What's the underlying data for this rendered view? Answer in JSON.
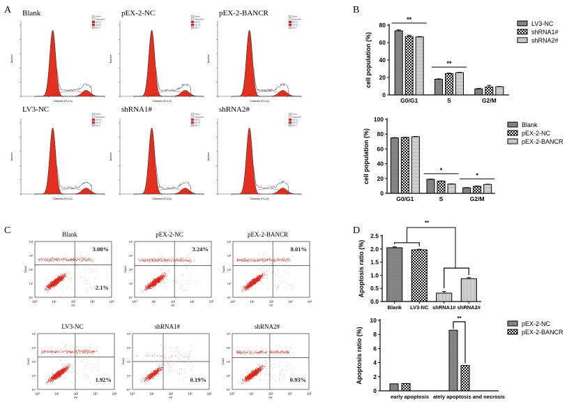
{
  "panel_labels": {
    "a": "A",
    "b": "B",
    "c": "C",
    "d": "D"
  },
  "panel_a": {
    "xlabel": "Channels (FL2-A)",
    "ylabel": "Number",
    "legend": [
      "Debris",
      "Aggregates",
      "Dip G1",
      "Dip G2",
      "Dip S"
    ],
    "plots": [
      {
        "title": "Blank"
      },
      {
        "title": "pEX-2-NC"
      },
      {
        "title": "pEX-2-BANCR"
      },
      {
        "title": "LV3-NC"
      },
      {
        "title": "shRNA1#"
      },
      {
        "title": "shRNA2#"
      }
    ]
  },
  "panel_c": {
    "xlabel": "PE",
    "ylabel": "7AAD",
    "ticks": [
      "10⁰",
      "10¹",
      "10²",
      "10³",
      "10⁴"
    ],
    "dot_color": "#d9261c",
    "plots": [
      {
        "title": "Blank",
        "upper_right": "3.08%",
        "lower_right": "2.1%"
      },
      {
        "title": "pEX-2-NC",
        "upper_right": "3.24%"
      },
      {
        "title": "pEX-2-BANCR",
        "upper_right": "8.01%"
      },
      {
        "title": "LV3-NC",
        "lower_right": "1.92%"
      },
      {
        "title": "shRNA1#",
        "lower_right": "0.19%"
      },
      {
        "title": "shRNA2#",
        "lower_right": "0.93%"
      }
    ]
  },
  "chart_data": [
    {
      "type": "bar",
      "panel": "B",
      "ylabel": "cell population (%)",
      "xlabel": "",
      "ylim": [
        0,
        80
      ],
      "yticks": [
        0,
        20,
        40,
        60,
        80
      ],
      "categories": [
        "G0/G1",
        "S",
        "G2/M"
      ],
      "series": [
        {
          "name": "LV3-NC",
          "values": [
            73.5,
            18,
            7
          ],
          "errors": [
            1,
            0.4,
            0.4
          ]
        },
        {
          "name": "shRNA1#",
          "values": [
            67,
            24.5,
            9
          ],
          "errors": [
            1.5,
            0.5,
            2
          ]
        },
        {
          "name": "shRNA2#",
          "values": [
            66.5,
            25.5,
            9.3
          ],
          "errors": [
            0.4,
            0.4,
            0.3
          ]
        }
      ],
      "annotations": [
        {
          "label": "**",
          "category": "G0/G1"
        },
        {
          "label": "**",
          "category": "S"
        }
      ],
      "legend": "right"
    },
    {
      "type": "bar",
      "panel": "B",
      "ylabel": "cell population (%)",
      "xlabel": "",
      "ylim": [
        0,
        100
      ],
      "yticks": [
        0,
        20,
        40,
        60,
        80,
        100
      ],
      "categories": [
        "G0/G1",
        "S",
        "G2/M"
      ],
      "series": [
        {
          "name": "Blank",
          "values": [
            75,
            19,
            7.5
          ],
          "errors": [
            0.3,
            0.3,
            0.3
          ]
        },
        {
          "name": "pEX-2-NC",
          "values": [
            75.5,
            16.5,
            9.5
          ],
          "errors": [
            0.3,
            0.3,
            0.3
          ]
        },
        {
          "name": "pEX-2-BANCR",
          "values": [
            76.5,
            12.5,
            12
          ],
          "errors": [
            0.3,
            0.3,
            0.3
          ]
        }
      ],
      "annotations": [
        {
          "label": "*",
          "category": "S"
        },
        {
          "label": "*",
          "category": "G2/M"
        }
      ],
      "legend": "right"
    },
    {
      "type": "bar",
      "panel": "D",
      "ylabel": "Apoptosis ratio (%)",
      "xlabel": "",
      "ylim": [
        0,
        2.5
      ],
      "yticks": [
        "0.0",
        "0.5",
        "1.0",
        "1.5",
        "2.0",
        "2.5"
      ],
      "categories": [
        "Blank",
        "LV3-NC",
        "shRNA1#",
        "shRNA2#"
      ],
      "values": [
        2.05,
        1.97,
        0.32,
        0.87
      ],
      "errors": [
        0.03,
        0.02,
        0.06,
        0.04
      ],
      "annotations": [
        {
          "label": "**",
          "between": [
            [
              "Blank",
              "LV3-NC"
            ],
            [
              "shRNA1#",
              "shRNA2#"
            ]
          ]
        }
      ]
    },
    {
      "type": "bar",
      "panel": "D",
      "ylabel": "Apoptosis ratio (%)",
      "xlabel": "",
      "ylim": [
        0,
        10
      ],
      "yticks": [
        0,
        2,
        4,
        6,
        8,
        10
      ],
      "categories": [
        "early apoptosis",
        "ately apoptosis and necrosis"
      ],
      "series": [
        {
          "name": "pEX-2-NC",
          "values": [
            1.0,
            8.6
          ]
        },
        {
          "name": "pEX-2-BANCR",
          "values": [
            1.05,
            3.6
          ]
        }
      ],
      "annotations": [
        {
          "label": "**",
          "category": "ately apoptosis and necrosis"
        }
      ],
      "legend": "right"
    }
  ]
}
